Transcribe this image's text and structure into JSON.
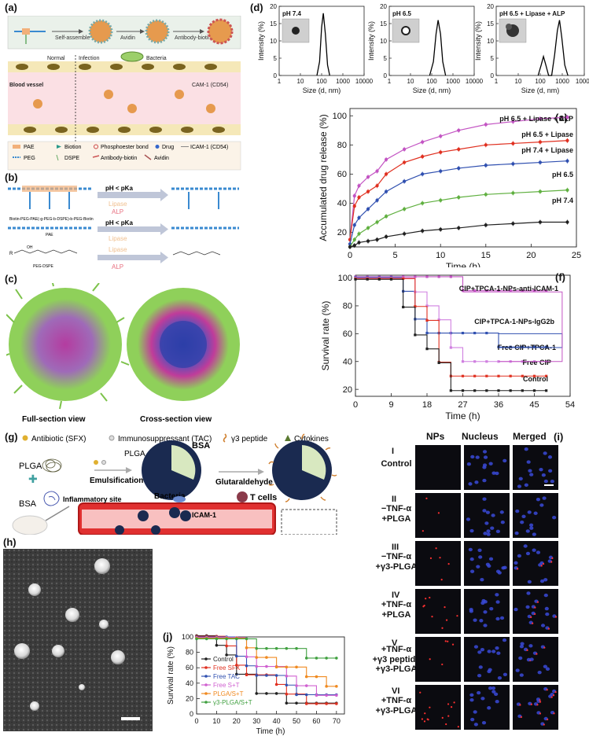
{
  "panels": {
    "a": {
      "label": "(a)"
    },
    "b": {
      "label": "(b)"
    },
    "c": {
      "label": "(c)"
    },
    "d": {
      "label": "(d)"
    },
    "e": {
      "label": "(e)"
    },
    "f": {
      "label": "(f)"
    },
    "g": {
      "label": "(g)"
    },
    "h": {
      "label": "(h)"
    },
    "i": {
      "label": "(i)"
    },
    "j": {
      "label": "(j)"
    }
  },
  "panel_a": {
    "steps": [
      "Self-assemble",
      "Avidin",
      "Antibody-biotin"
    ],
    "normal": "Normal",
    "infection": "Infection",
    "bacteria": "Bacteria",
    "vessel": "Blood vessel",
    "cam": "CAM-1 (CD54)",
    "legend": [
      "PAE",
      "Biotion",
      "Phosphoester bond",
      "Drug",
      "ICAM-1 (CD54)",
      "PEG",
      "DSPE",
      "Antibody-biotin",
      "Avidin"
    ]
  },
  "panel_b": {
    "cond1": "pH < pKa",
    "lipase": "Lipase",
    "alp": "ALP",
    "polymer": "Biotin-PEG-PAE(-g-PEG-b-DSPE)-b-PEG-Biotin",
    "pae": "PAE",
    "cond2": "pH < pKa",
    "lipase2": "Lipase",
    "pegdspe": "PEG-DSPE",
    "lipase3": "Lipase",
    "alp2": "ALP",
    "r_group": "R",
    "oh": "OH"
  },
  "panel_c": {
    "full": "Full-section view",
    "cross": "Cross-section view"
  },
  "panel_d": {
    "titles": [
      "pH 7.4",
      "pH 6.5",
      "pH 6.5 + Lipase + ALP"
    ],
    "xlabel": "Size (d, nm)",
    "ylabel": "Intensity (%)",
    "xticks": [
      "1",
      "10",
      "100",
      "1000",
      "10000"
    ],
    "yticks": [
      "0",
      "5",
      "10",
      "15",
      "20"
    ]
  },
  "panel_e": {
    "xlabel": "Time (h)",
    "ylabel": "Accumulated drug release (%)",
    "xticks": [
      "0",
      "5",
      "10",
      "15",
      "20",
      "25"
    ],
    "yticks": [
      "20",
      "40",
      "60",
      "80",
      "100"
    ]
  },
  "panel_f": {
    "xlabel": "Time (h)",
    "ylabel": "Survival rate (%)",
    "xticks": [
      "0",
      "9",
      "18",
      "27",
      "36",
      "45",
      "54"
    ],
    "yticks": [
      "20",
      "40",
      "60",
      "80",
      "100"
    ]
  },
  "panel_g": {
    "legend": [
      "Antibiotic (SFX)",
      "Immunosuppressant (TAC)",
      "γ3 peptide",
      "Cytokines"
    ],
    "plga": "PLGA",
    "bsa": "BSA",
    "plga2": "PLGA",
    "bsa2": "BSA",
    "emulsification": "Emulsification",
    "glutaraldehyde": "Glutaraldehyde",
    "inflammatory": "Inflammatory site",
    "bacteria": "Bacteria",
    "tcells": "T cells",
    "icam": "ICAM-1"
  },
  "panel_i": {
    "headers": [
      "NPs",
      "Nucleus",
      "Merged"
    ],
    "rows": [
      {
        "num": "I",
        "label": "Control"
      },
      {
        "num": "II",
        "label": "−TNF-α\n+PLGA"
      },
      {
        "num": "III",
        "label": "−TNF-α\n+γ3-PLGA"
      },
      {
        "num": "IV",
        "label": "+TNF-α\n+PLGA"
      },
      {
        "num": "V",
        "label": "+TNF-α\n+γ3 peptide\n+γ3-PLGA"
      },
      {
        "num": "VI",
        "label": "+TNF-α\n+γ3-PLGA"
      }
    ]
  },
  "panel_j": {
    "xlabel": "Time (h)",
    "ylabel": "Survival rate (%)",
    "xticks": [
      "0",
      "10",
      "20",
      "30",
      "40",
      "50",
      "60",
      "70"
    ],
    "yticks": [
      "0",
      "20",
      "40",
      "60",
      "80",
      "100"
    ]
  },
  "chart_data": [
    {
      "id": "d1",
      "type": "line",
      "title": "pH 7.4",
      "xlabel": "Size (d, nm)",
      "ylabel": "Intensity (%)",
      "xscale": "log",
      "xlim": [
        1,
        10000
      ],
      "ylim": [
        0,
        20
      ],
      "series": [
        {
          "x": [
            60,
            80,
            100,
            120,
            150,
            190,
            240
          ],
          "y": [
            0,
            4,
            14,
            18,
            12,
            3,
            0
          ],
          "color": "#000000"
        }
      ]
    },
    {
      "id": "d2",
      "type": "line",
      "title": "pH 6.5",
      "xlabel": "Size (d, nm)",
      "ylabel": "Intensity (%)",
      "xscale": "log",
      "xlim": [
        1,
        10000
      ],
      "ylim": [
        0,
        20
      ],
      "series": [
        {
          "x": [
            80,
            120,
            160,
            200,
            260,
            330,
            450
          ],
          "y": [
            0,
            4,
            12,
            16,
            12,
            4,
            0
          ],
          "color": "#000000"
        }
      ]
    },
    {
      "id": "d3",
      "type": "line",
      "title": "pH 6.5 + Lipase + ALP",
      "xlabel": "Size (d, nm)",
      "ylabel": "Intensity (%)",
      "xscale": "log",
      "xlim": [
        1,
        10000
      ],
      "ylim": [
        0,
        20
      ],
      "series": [
        {
          "x": [
            80,
            110,
            140,
            180,
            240,
            330,
            450,
            600,
            750,
            950,
            1300,
            1800
          ],
          "y": [
            0,
            3,
            5.5,
            3,
            0,
            0,
            6,
            13,
            16,
            11,
            3,
            0
          ],
          "color": "#000000"
        }
      ]
    },
    {
      "id": "e",
      "type": "line",
      "xlabel": "Time (h)",
      "ylabel": "Accumulated drug release (%)",
      "xlim": [
        0,
        25
      ],
      "ylim": [
        10,
        105
      ],
      "series": [
        {
          "name": "pH 6.5 + Lipase + ALP",
          "color": "#c354c3",
          "x": [
            0,
            0.5,
            1,
            2,
            3,
            4,
            6,
            8,
            10,
            12,
            15,
            18,
            21,
            24
          ],
          "y": [
            15,
            45,
            52,
            58,
            62,
            70,
            77,
            82,
            86,
            90,
            94,
            96,
            98,
            99
          ]
        },
        {
          "name": "pH 6.5 + Lipase",
          "color": "#e03020",
          "x": [
            0,
            0.5,
            1,
            2,
            3,
            4,
            6,
            8,
            10,
            12,
            15,
            18,
            21,
            24
          ],
          "y": [
            15,
            38,
            44,
            48,
            52,
            60,
            68,
            72,
            75,
            77,
            80,
            81,
            82,
            83
          ]
        },
        {
          "name": "pH 7.4 + Lipase",
          "color": "#3050b0",
          "x": [
            0,
            0.5,
            1,
            2,
            3,
            4,
            6,
            8,
            10,
            12,
            15,
            18,
            21,
            24
          ],
          "y": [
            12,
            25,
            30,
            36,
            42,
            48,
            55,
            60,
            62,
            64,
            66,
            67,
            68,
            69
          ]
        },
        {
          "name": "pH 6.5",
          "color": "#60b040",
          "x": [
            0,
            0.5,
            1,
            2,
            3,
            4,
            6,
            8,
            10,
            12,
            15,
            18,
            21,
            24
          ],
          "y": [
            10,
            15,
            19,
            23,
            27,
            31,
            36,
            40,
            42,
            44,
            46,
            47,
            48,
            49
          ]
        },
        {
          "name": "pH 7.4",
          "color": "#202020",
          "x": [
            0,
            0.5,
            1,
            2,
            3,
            4,
            6,
            8,
            10,
            12,
            15,
            18,
            21,
            24
          ],
          "y": [
            10,
            11,
            13,
            14,
            15,
            17,
            19,
            21,
            22,
            23,
            25,
            26,
            27,
            27
          ]
        }
      ]
    },
    {
      "id": "f",
      "type": "line",
      "xlabel": "Time (h)",
      "ylabel": "Survival rate (%)",
      "xlim": [
        0,
        54
      ],
      "ylim": [
        15,
        102
      ],
      "series": [
        {
          "name": "CIP+TPCA-1-NPs-anti-ICAM-1",
          "color": "#c354c3",
          "x": [
            0,
            3,
            6,
            9,
            12,
            15,
            18,
            21,
            24,
            27,
            30,
            33,
            36,
            39,
            42,
            45,
            48
          ],
          "y": [
            100,
            100,
            100,
            100,
            100,
            100,
            100,
            100,
            100,
            90,
            90,
            90,
            90,
            90,
            90,
            90,
            90
          ],
          "step": true
        },
        {
          "name": "CIP+TPCA-1-NPs-IgG2b",
          "color": "#3050b0",
          "x": [
            0,
            3,
            6,
            9,
            12,
            15,
            18,
            21,
            24,
            27,
            30,
            33,
            36,
            39,
            42,
            45,
            48
          ],
          "y": [
            100,
            100,
            100,
            100,
            90,
            70,
            60,
            60,
            60,
            60,
            60,
            60,
            50,
            50,
            50,
            50,
            50
          ],
          "step": true
        },
        {
          "name": "Free CIP+TPCA-1",
          "color": "#d080e0",
          "x": [
            0,
            3,
            6,
            9,
            12,
            15,
            18,
            21,
            24,
            27,
            30,
            33,
            36,
            39,
            42,
            45,
            48
          ],
          "y": [
            100,
            100,
            100,
            100,
            100,
            90,
            80,
            70,
            50,
            40,
            40,
            40,
            40,
            40,
            40,
            40,
            40
          ],
          "step": true
        },
        {
          "name": "Free CIP",
          "color": "#e03020",
          "x": [
            0,
            3,
            6,
            9,
            12,
            15,
            18,
            21,
            24,
            27,
            30,
            33,
            36,
            39,
            42,
            45,
            48
          ],
          "y": [
            100,
            100,
            100,
            100,
            100,
            80,
            70,
            40,
            30,
            30,
            30,
            30,
            30,
            30,
            30,
            30,
            30
          ],
          "step": true
        },
        {
          "name": "Control",
          "color": "#202020",
          "x": [
            0,
            3,
            6,
            9,
            12,
            15,
            18,
            21,
            24,
            27,
            30,
            33,
            36,
            39,
            42,
            45,
            48
          ],
          "y": [
            100,
            100,
            100,
            100,
            80,
            60,
            50,
            40,
            20,
            20,
            20,
            20,
            20,
            20,
            20,
            20,
            20
          ],
          "step": true
        }
      ]
    },
    {
      "id": "j",
      "type": "line",
      "xlabel": "Time (h)",
      "ylabel": "Survival rate (%)",
      "xlim": [
        0,
        74
      ],
      "ylim": [
        0,
        100
      ],
      "series": [
        {
          "name": "Control",
          "color": "#202020",
          "x": [
            0,
            5,
            10,
            15,
            20,
            25,
            30,
            35,
            40,
            45,
            50,
            55,
            60,
            65,
            70
          ],
          "y": [
            100,
            100,
            87.5,
            75,
            50,
            50,
            25,
            25,
            25,
            12.5,
            12.5,
            12.5,
            12.5,
            12.5,
            12.5
          ],
          "step": true
        },
        {
          "name": "Free SFX",
          "color": "#e03020",
          "x": [
            0,
            5,
            10,
            15,
            20,
            25,
            30,
            35,
            40,
            45,
            50,
            55,
            60,
            65,
            70
          ],
          "y": [
            100,
            100,
            100,
            87.5,
            62.5,
            50,
            50,
            50,
            37.5,
            25,
            25,
            12.5,
            12.5,
            12.5,
            12.5
          ],
          "step": true
        },
        {
          "name": "Free TAC",
          "color": "#3050b0",
          "x": [
            0,
            5,
            10,
            15,
            20,
            25,
            30,
            35,
            40,
            45,
            50,
            55,
            60,
            65,
            70
          ],
          "y": [
            100,
            100,
            100,
            100,
            75,
            62.5,
            50,
            50,
            50,
            37.5,
            25,
            25,
            25,
            25,
            25
          ],
          "step": true
        },
        {
          "name": "Free S+T",
          "color": "#d060d0",
          "x": [
            0,
            5,
            10,
            15,
            20,
            25,
            30,
            35,
            40,
            45,
            50,
            55,
            60,
            65,
            70
          ],
          "y": [
            100,
            100,
            100,
            100,
            100,
            75,
            62.5,
            62.5,
            62.5,
            50,
            37.5,
            37.5,
            25,
            25,
            25
          ],
          "step": true
        },
        {
          "name": "PLGA/S+T",
          "color": "#f08a20",
          "x": [
            0,
            5,
            10,
            15,
            20,
            25,
            30,
            35,
            40,
            45,
            50,
            55,
            60,
            65,
            70
          ],
          "y": [
            100,
            100,
            100,
            100,
            100,
            87.5,
            75,
            75,
            62.5,
            62.5,
            62.5,
            50,
            50,
            37.5,
            37.5
          ],
          "step": true
        },
        {
          "name": "γ3-PLGA/S+T",
          "color": "#40a040",
          "x": [
            0,
            5,
            10,
            15,
            20,
            25,
            30,
            35,
            40,
            45,
            50,
            55,
            60,
            65,
            70
          ],
          "y": [
            100,
            100,
            100,
            100,
            100,
            100,
            87.5,
            87.5,
            87.5,
            87.5,
            87.5,
            75,
            75,
            75,
            75
          ],
          "step": true
        }
      ]
    }
  ]
}
